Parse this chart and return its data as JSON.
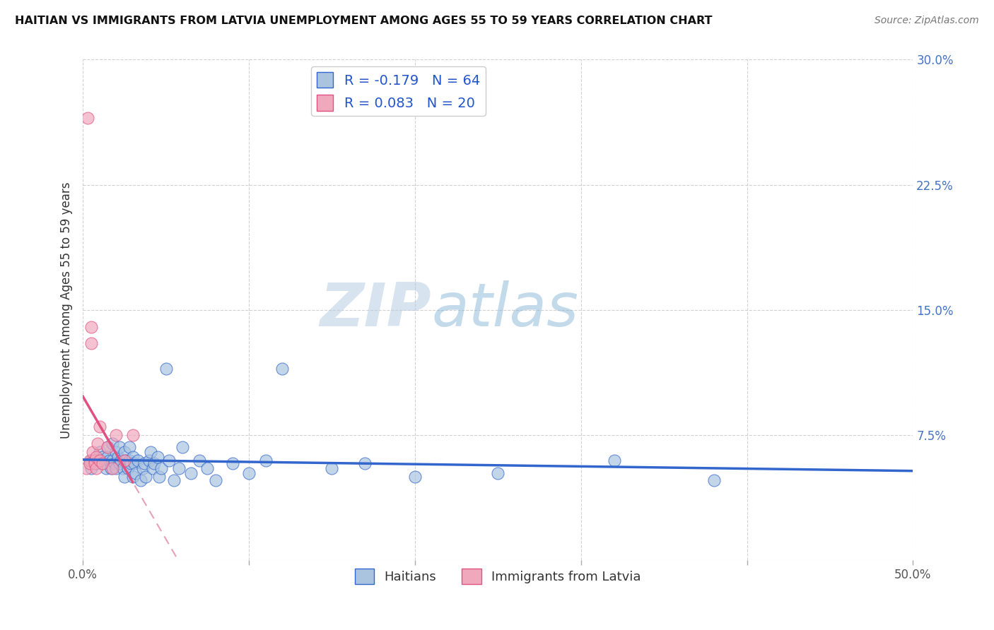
{
  "title": "HAITIAN VS IMMIGRANTS FROM LATVIA UNEMPLOYMENT AMONG AGES 55 TO 59 YEARS CORRELATION CHART",
  "source": "Source: ZipAtlas.com",
  "ylabel": "Unemployment Among Ages 55 to 59 years",
  "xlabel_haitians": "Haitians",
  "xlabel_latvia": "Immigrants from Latvia",
  "xlim": [
    0.0,
    0.5
  ],
  "ylim": [
    0.0,
    0.3
  ],
  "xticks": [
    0.0,
    0.1,
    0.2,
    0.3,
    0.4,
    0.5
  ],
  "yticks": [
    0.0,
    0.075,
    0.15,
    0.225,
    0.3
  ],
  "xticklabels": [
    "0.0%",
    "",
    "",
    "",
    "",
    "50.0%"
  ],
  "yticklabels": [
    "",
    "7.5%",
    "15.0%",
    "22.5%",
    "30.0%"
  ],
  "R_haitians": -0.179,
  "N_haitians": 64,
  "R_latvia": 0.083,
  "N_latvia": 20,
  "color_haitians": "#aac4e0",
  "color_latvia": "#f0a8bc",
  "line_color_haitians": "#3366CC",
  "line_color_latvia": "#E05080",
  "line_color_latvia_dashed": "#E8A0B8",
  "watermark_zip": "ZIP",
  "watermark_atlas": "atlas",
  "background_color": "#ffffff",
  "grid_color": "#cccccc",
  "haitians_x": [
    0.005,
    0.005,
    0.008,
    0.01,
    0.01,
    0.012,
    0.012,
    0.014,
    0.015,
    0.015,
    0.016,
    0.017,
    0.018,
    0.018,
    0.019,
    0.02,
    0.02,
    0.021,
    0.022,
    0.022,
    0.023,
    0.024,
    0.025,
    0.025,
    0.026,
    0.027,
    0.028,
    0.028,
    0.029,
    0.03,
    0.03,
    0.031,
    0.032,
    0.033,
    0.035,
    0.036,
    0.037,
    0.038,
    0.04,
    0.041,
    0.042,
    0.043,
    0.045,
    0.046,
    0.047,
    0.05,
    0.052,
    0.055,
    0.058,
    0.06,
    0.065,
    0.07,
    0.075,
    0.08,
    0.09,
    0.1,
    0.11,
    0.12,
    0.15,
    0.17,
    0.2,
    0.25,
    0.32,
    0.38
  ],
  "haitians_y": [
    0.06,
    0.055,
    0.058,
    0.065,
    0.06,
    0.062,
    0.058,
    0.055,
    0.068,
    0.062,
    0.06,
    0.055,
    0.07,
    0.06,
    0.058,
    0.065,
    0.055,
    0.062,
    0.068,
    0.058,
    0.06,
    0.055,
    0.065,
    0.05,
    0.06,
    0.055,
    0.068,
    0.06,
    0.058,
    0.062,
    0.05,
    0.058,
    0.052,
    0.06,
    0.048,
    0.055,
    0.058,
    0.05,
    0.06,
    0.065,
    0.055,
    0.058,
    0.062,
    0.05,
    0.055,
    0.115,
    0.06,
    0.048,
    0.055,
    0.068,
    0.052,
    0.06,
    0.055,
    0.048,
    0.058,
    0.052,
    0.06,
    0.115,
    0.055,
    0.058,
    0.05,
    0.052,
    0.06,
    0.048
  ],
  "latvia_x": [
    0.002,
    0.003,
    0.004,
    0.004,
    0.005,
    0.005,
    0.006,
    0.007,
    0.007,
    0.008,
    0.008,
    0.009,
    0.01,
    0.01,
    0.012,
    0.015,
    0.018,
    0.02,
    0.025,
    0.03
  ],
  "latvia_y": [
    0.055,
    0.265,
    0.06,
    0.058,
    0.14,
    0.13,
    0.065,
    0.06,
    0.058,
    0.062,
    0.055,
    0.07,
    0.06,
    0.08,
    0.058,
    0.068,
    0.055,
    0.075,
    0.06,
    0.075
  ]
}
